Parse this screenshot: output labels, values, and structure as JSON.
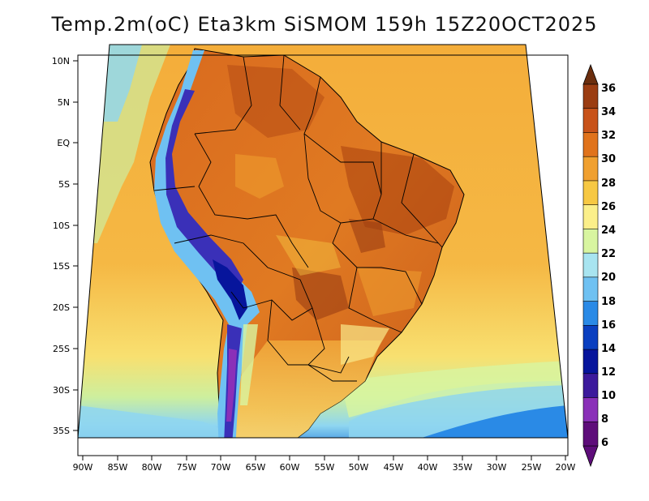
{
  "title": "Temp.2m(oC) Eta3km SiSMOM 159h 15Z20OCT2025",
  "lat_labels": [
    "10N",
    "5N",
    "EQ",
    "5S",
    "10S",
    "15S",
    "20S",
    "25S",
    "30S",
    "35S"
  ],
  "lon_labels": [
    "90W",
    "85W",
    "80W",
    "75W",
    "70W",
    "65W",
    "60W",
    "55W",
    "50W",
    "45W",
    "40W",
    "35W",
    "30W",
    "25W",
    "20W"
  ],
  "colorbar": {
    "labels": [
      "36",
      "34",
      "32",
      "30",
      "28",
      "26",
      "24",
      "22",
      "20",
      "18",
      "16",
      "14",
      "12",
      "10",
      "8",
      "6"
    ],
    "colors": [
      "#6b2e0e",
      "#9b3d12",
      "#c8531a",
      "#e0731c",
      "#f0a030",
      "#f7c843",
      "#fbef8a",
      "#d8f5a0",
      "#a8e4f0",
      "#6fc1f2",
      "#2a8ae6",
      "#0a3fc0",
      "#07159c",
      "#3c1a9c",
      "#8a30b8",
      "#5e0d7a"
    ]
  },
  "palette": {
    "ocean": "#f3b340",
    "land_base": "#e07a22",
    "land_hot": "#b44a14",
    "cool_south": "#a8e4f0",
    "andes_cold": "#3a30b8"
  }
}
